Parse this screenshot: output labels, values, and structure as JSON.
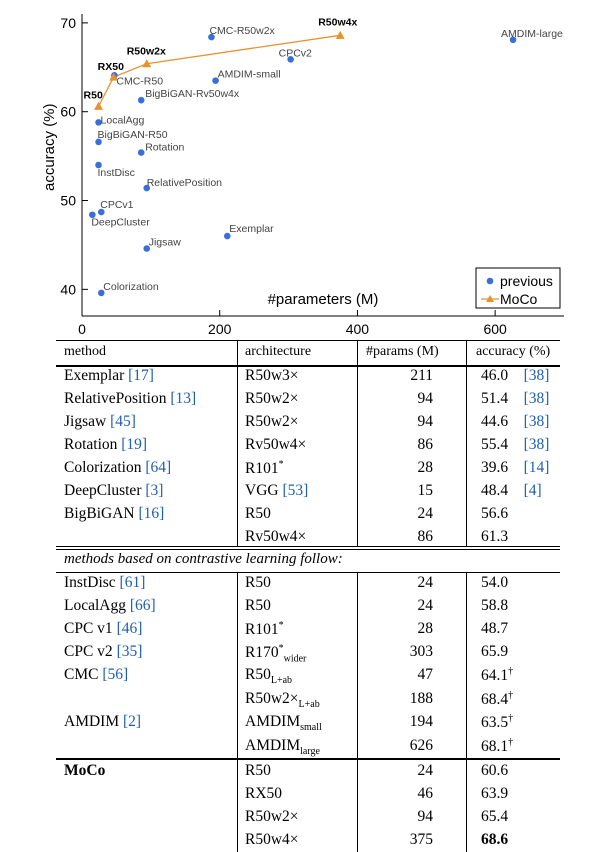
{
  "chart_data": {
    "type": "scatter",
    "xlabel": "#parameters (M)",
    "ylabel": "accuracy (%)",
    "xlim": [
      0,
      700
    ],
    "ylim": [
      37,
      71
    ],
    "xticks": [
      "0",
      "200",
      "400",
      "600"
    ],
    "yticks": [
      "40",
      "50",
      "60",
      "70"
    ],
    "legend": {
      "placement": "bottom-right",
      "entries": [
        "previous",
        "MoCo"
      ]
    },
    "series": [
      {
        "name": "previous",
        "color": "#3a6fd8",
        "points": [
          {
            "label": "CMC-R50w2x",
            "x": 188,
            "y": 68.4
          },
          {
            "label": "AMDIM-large",
            "x": 626,
            "y": 68.1
          },
          {
            "label": "CPCv2",
            "x": 303,
            "y": 65.9
          },
          {
            "label": "AMDIM-small",
            "x": 194,
            "y": 63.5
          },
          {
            "label": "CMC-R50",
            "x": 47,
            "y": 64.1
          },
          {
            "label": "BigBiGAN-Rv50w4x",
            "x": 86,
            "y": 61.3
          },
          {
            "label": "LocalAgg",
            "x": 24,
            "y": 58.8
          },
          {
            "label": "BigBiGAN-R50",
            "x": 24,
            "y": 56.6
          },
          {
            "label": "Rotation",
            "x": 86,
            "y": 55.4
          },
          {
            "label": "InstDisc",
            "x": 24,
            "y": 54.0
          },
          {
            "label": "RelativePosition",
            "x": 94,
            "y": 51.4
          },
          {
            "label": "CPCv1",
            "x": 28,
            "y": 48.7
          },
          {
            "label": "DeepCluster",
            "x": 15,
            "y": 48.4
          },
          {
            "label": "Exemplar",
            "x": 211,
            "y": 46.0
          },
          {
            "label": "Jigsaw",
            "x": 94,
            "y": 44.6
          },
          {
            "label": "Colorization",
            "x": 28,
            "y": 39.6
          }
        ]
      },
      {
        "name": "MoCo",
        "color": "#e8922e",
        "points": [
          {
            "label": "R50",
            "x": 24,
            "y": 60.6
          },
          {
            "label": "RX50",
            "x": 46,
            "y": 63.9
          },
          {
            "label": "R50w2x",
            "x": 94,
            "y": 65.4
          },
          {
            "label": "R50w4x",
            "x": 375,
            "y": 68.6
          }
        ]
      }
    ]
  },
  "table": {
    "headers": [
      "method",
      "architecture",
      "#params (M)",
      "accuracy (%)"
    ],
    "section_label": "methods based on contrastive learning follow:",
    "rows": [
      {
        "method": "Exemplar",
        "cite": "[17]",
        "arch": "R50w3×",
        "arch_sub": "",
        "arch_sup": "",
        "params": "211",
        "acc": "46.0",
        "acc_mark": "",
        "acc_cite": "[38]"
      },
      {
        "method": "RelativePosition",
        "cite": "[13]",
        "arch": "R50w2×",
        "arch_sub": "",
        "arch_sup": "",
        "params": "94",
        "acc": "51.4",
        "acc_mark": "",
        "acc_cite": "[38]"
      },
      {
        "method": "Jigsaw",
        "cite": "[45]",
        "arch": "R50w2×",
        "arch_sub": "",
        "arch_sup": "",
        "params": "94",
        "acc": "44.6",
        "acc_mark": "",
        "acc_cite": "[38]"
      },
      {
        "method": "Rotation",
        "cite": "[19]",
        "arch": "Rv50w4×",
        "arch_sub": "",
        "arch_sup": "",
        "params": "86",
        "acc": "55.4",
        "acc_mark": "",
        "acc_cite": "[38]"
      },
      {
        "method": "Colorization",
        "cite": "[64]",
        "arch": "R101",
        "arch_sub": "",
        "arch_sup": "*",
        "params": "28",
        "acc": "39.6",
        "acc_mark": "",
        "acc_cite": "[14]"
      },
      {
        "method": "DeepCluster",
        "cite": "[3]",
        "arch": "VGG",
        "arch_cite": "[53]",
        "arch_sub": "",
        "arch_sup": "",
        "params": "15",
        "acc": "48.4",
        "acc_mark": "",
        "acc_cite": "[4]"
      },
      {
        "method": "BigBiGAN",
        "cite": "[16]",
        "arch": "R50",
        "arch_sub": "",
        "arch_sup": "",
        "params": "24",
        "acc": "56.6",
        "acc_mark": "",
        "acc_cite": ""
      },
      {
        "method": "",
        "cite": "",
        "arch": "Rv50w4×",
        "arch_sub": "",
        "arch_sup": "",
        "params": "86",
        "acc": "61.3",
        "acc_mark": "",
        "acc_cite": ""
      },
      {
        "method": "InstDisc",
        "cite": "[61]",
        "arch": "R50",
        "arch_sub": "",
        "arch_sup": "",
        "params": "24",
        "acc": "54.0",
        "acc_mark": "",
        "acc_cite": ""
      },
      {
        "method": "LocalAgg",
        "cite": "[66]",
        "arch": "R50",
        "arch_sub": "",
        "arch_sup": "",
        "params": "24",
        "acc": "58.8",
        "acc_mark": "",
        "acc_cite": ""
      },
      {
        "method": "CPC v1",
        "cite": "[46]",
        "arch": "R101",
        "arch_sub": "",
        "arch_sup": "*",
        "params": "28",
        "acc": "48.7",
        "acc_mark": "",
        "acc_cite": ""
      },
      {
        "method": "CPC v2",
        "cite": "[35]",
        "arch": "R170",
        "arch_sub": "wider",
        "arch_sup": "*",
        "params": "303",
        "acc": "65.9",
        "acc_mark": "",
        "acc_cite": ""
      },
      {
        "method": "CMC",
        "cite": "[56]",
        "arch": "R50",
        "arch_sub": "L+ab",
        "arch_sup": "",
        "params": "47",
        "acc": "64.1",
        "acc_mark": "†",
        "acc_cite": ""
      },
      {
        "method": "",
        "cite": "",
        "arch": "R50w2×",
        "arch_sub": "L+ab",
        "arch_sup": "",
        "params": "188",
        "acc": "68.4",
        "acc_mark": "†",
        "acc_cite": ""
      },
      {
        "method": "AMDIM",
        "cite": "[2]",
        "arch": "AMDIM",
        "arch_sub": "small",
        "arch_sup": "",
        "params": "194",
        "acc": "63.5",
        "acc_mark": "†",
        "acc_cite": ""
      },
      {
        "method": "",
        "cite": "",
        "arch": "AMDIM",
        "arch_sub": "large",
        "arch_sup": "",
        "params": "626",
        "acc": "68.1",
        "acc_mark": "†",
        "acc_cite": ""
      },
      {
        "method": "MoCo",
        "cite": "",
        "arch": "R50",
        "arch_sub": "",
        "arch_sup": "",
        "params": "24",
        "acc": "60.6",
        "acc_mark": "",
        "acc_cite": ""
      },
      {
        "method": "",
        "cite": "",
        "arch": "RX50",
        "arch_sub": "",
        "arch_sup": "",
        "params": "46",
        "acc": "63.9",
        "acc_mark": "",
        "acc_cite": ""
      },
      {
        "method": "",
        "cite": "",
        "arch": "R50w2×",
        "arch_sub": "",
        "arch_sup": "",
        "params": "94",
        "acc": "65.4",
        "acc_mark": "",
        "acc_cite": ""
      },
      {
        "method": "",
        "cite": "",
        "arch": "R50w4×",
        "arch_sub": "",
        "arch_sup": "",
        "params": "375",
        "acc": "68.6",
        "acc_mark": "",
        "acc_cite": ""
      }
    ]
  }
}
